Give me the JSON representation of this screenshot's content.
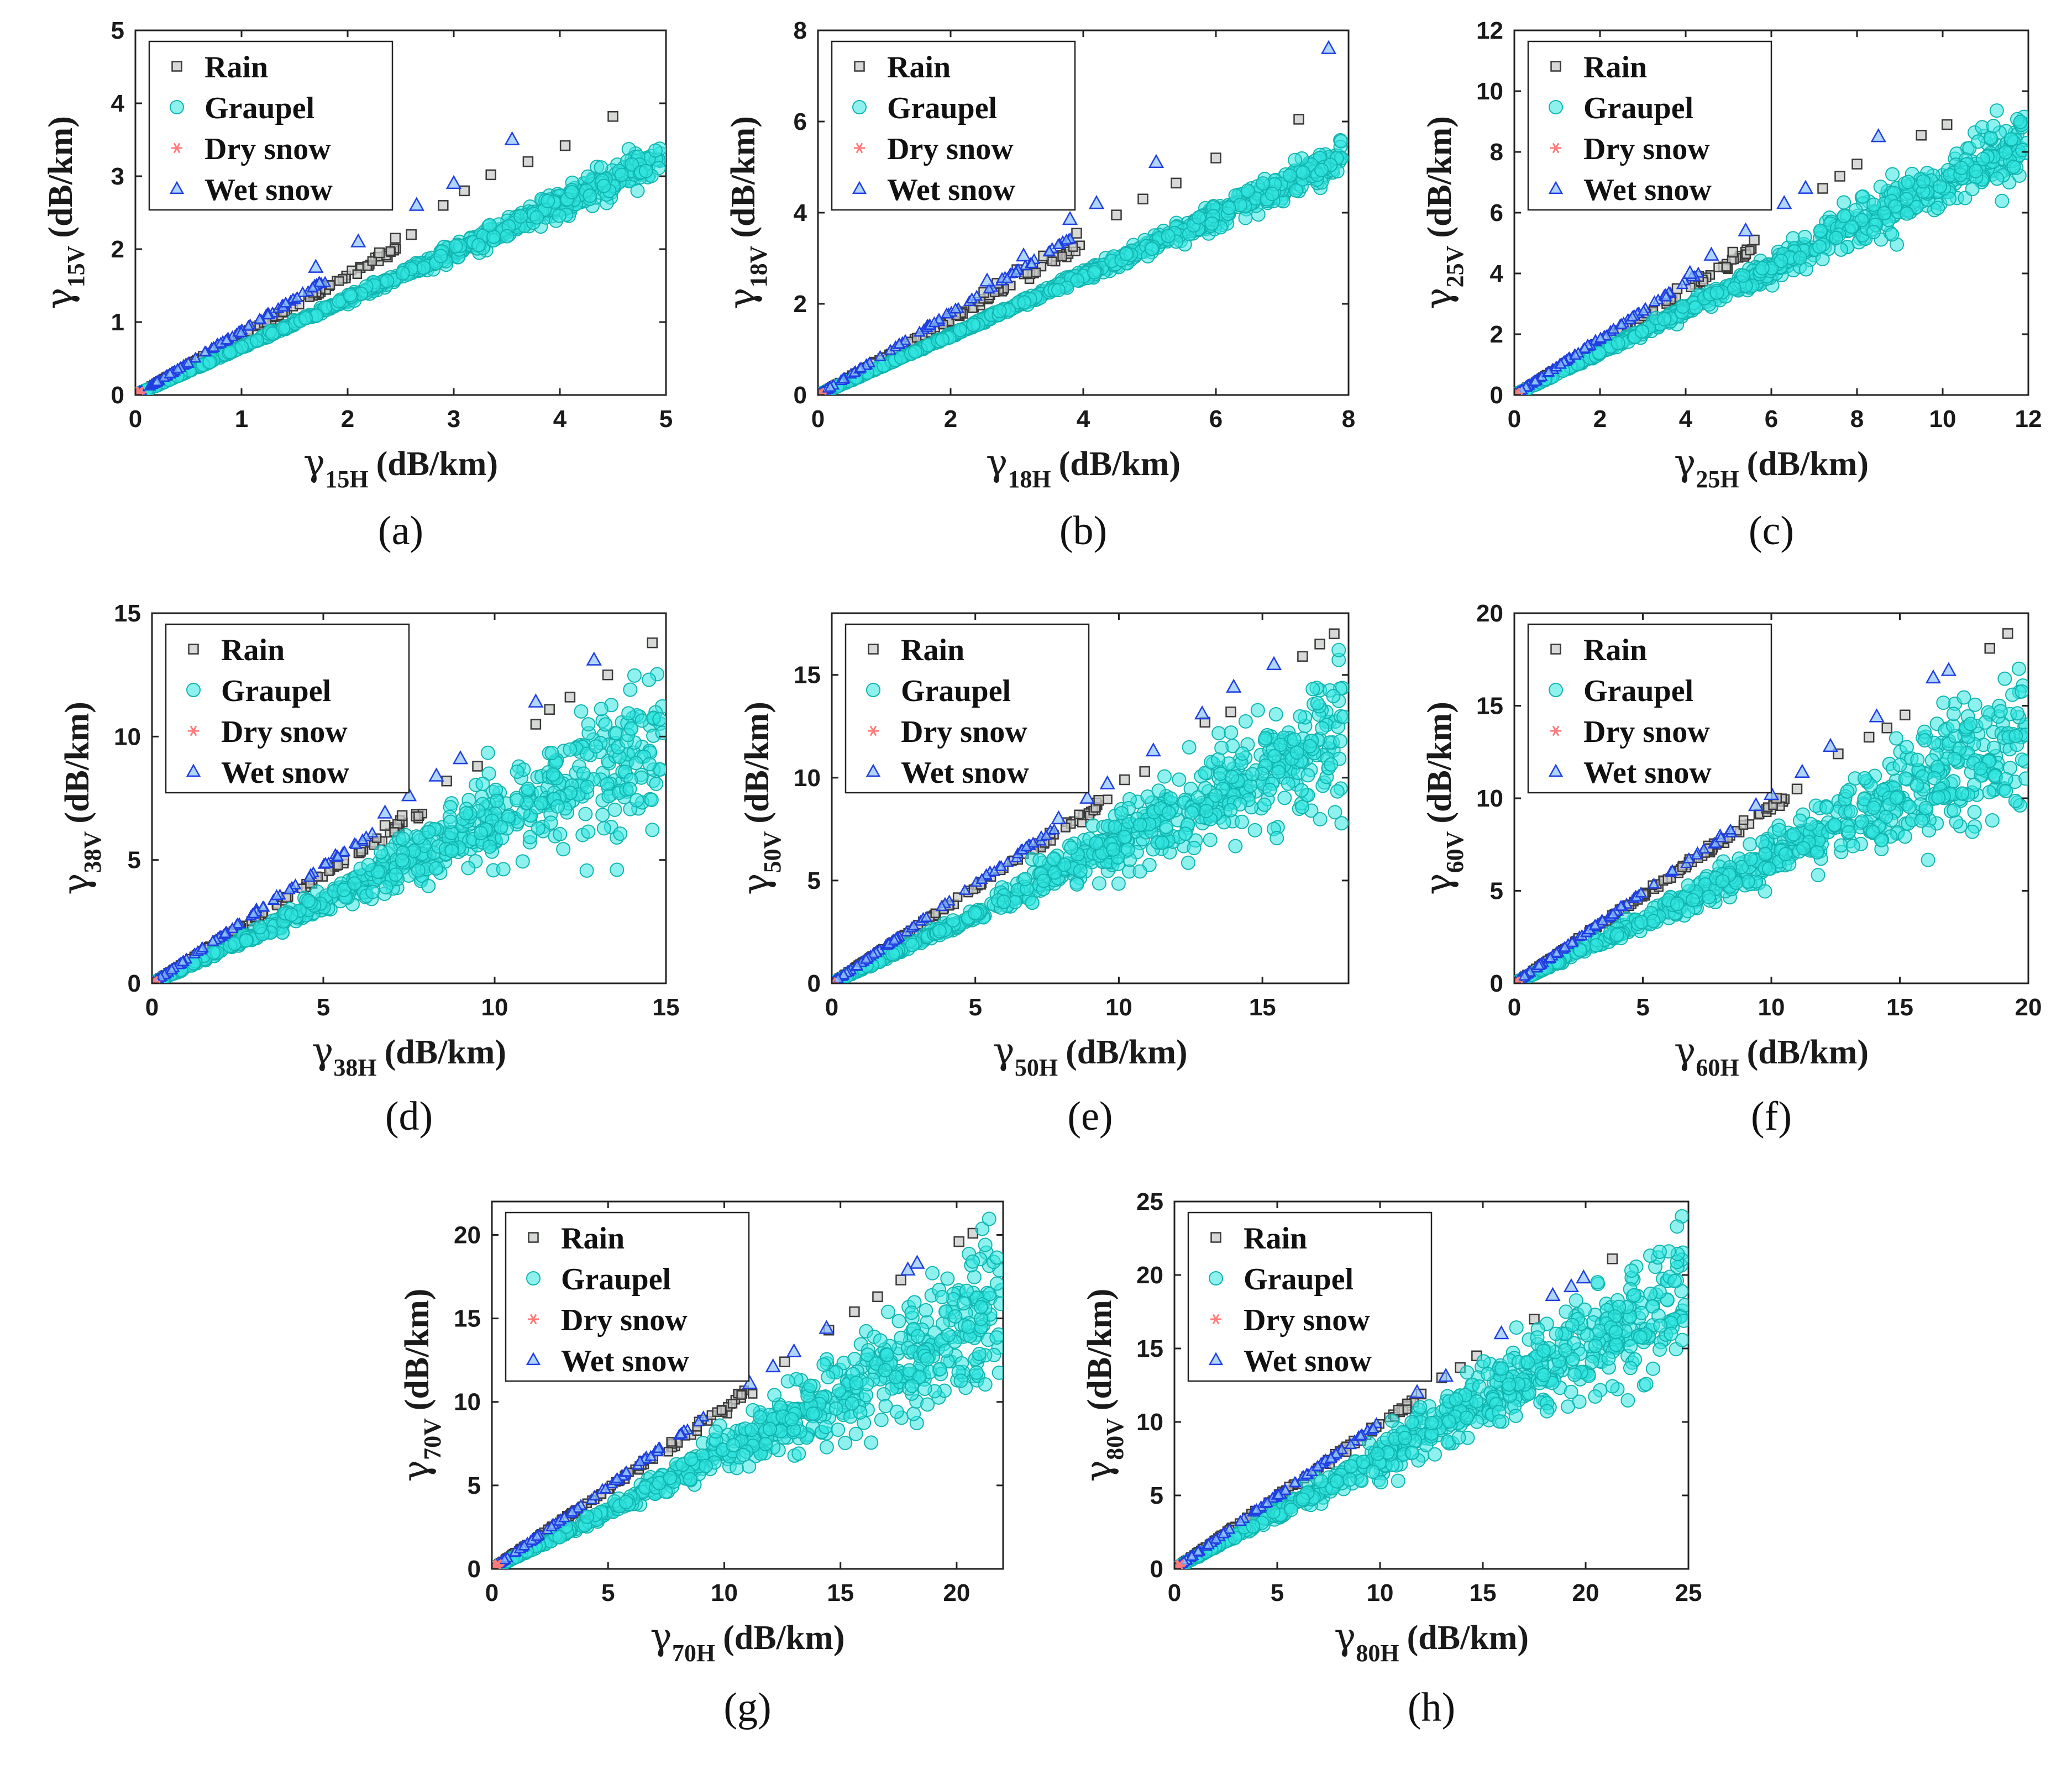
{
  "legend": {
    "rain": "Rain",
    "graupel": "Graupel",
    "dry_snow": "Dry snow",
    "wet_snow": "Wet snow"
  },
  "colors": {
    "rain_fill": "#c9ccc9",
    "rain_edge": "#3a3a3a",
    "graupel_fill": "#33e6e0",
    "graupel_edge": "#11b5b0",
    "dry_snow": "#ff7a7a",
    "wet_snow_fill": "#8fc3ff",
    "wet_snow_edge": "#1f3fe0"
  },
  "chart_data": [
    {
      "id": "a",
      "caption": "(a)",
      "type": "scatter",
      "xlabel": "γ15H (dB/km)",
      "ylabel": "γ15V (dB/km)",
      "x_symbol": "γ",
      "x_sub": "15H",
      "y_symbol": "γ",
      "y_sub": "15V",
      "unit": "(dB/km)",
      "xlim": [
        0,
        5
      ],
      "ylim": [
        0,
        5
      ],
      "xticks": [
        "0",
        "1",
        "2",
        "3",
        "4",
        "5"
      ],
      "yticks": [
        "0",
        "1",
        "2",
        "3",
        "4",
        "5"
      ],
      "series_trends": {
        "rain": {
          "slope": 0.82,
          "max_x": 4.5,
          "outliers": [
            [
              3.7,
              3.2
            ],
            [
              4.05,
              3.42
            ],
            [
              4.5,
              3.82
            ],
            [
              3.35,
              3.02
            ],
            [
              3.1,
              2.8
            ],
            [
              2.9,
              2.6
            ],
            [
              2.6,
              2.2
            ],
            [
              2.45,
              2.15
            ],
            [
              2.3,
              1.95
            ]
          ]
        },
        "graupel": {
          "slope": 0.655,
          "max_x": 4.95,
          "spread": 0.03
        },
        "wet_snow": {
          "slope": 0.88,
          "max_x": 3.6,
          "outliers": [
            [
              3.55,
              3.5
            ],
            [
              3.0,
              2.9
            ],
            [
              2.65,
              2.6
            ],
            [
              2.1,
              2.1
            ],
            [
              1.7,
              1.75
            ]
          ]
        },
        "dry_snow": {
          "max": 0.05
        }
      }
    },
    {
      "id": "b",
      "caption": "(b)",
      "type": "scatter",
      "xlabel": "γ18H (dB/km)",
      "ylabel": "γ18V (dB/km)",
      "x_symbol": "γ",
      "x_sub": "18H",
      "y_symbol": "γ",
      "y_sub": "18V",
      "unit": "(dB/km)",
      "xlim": [
        0,
        8
      ],
      "ylim": [
        0,
        8
      ],
      "xticks": [
        "0",
        "2",
        "4",
        "6",
        "8"
      ],
      "yticks": [
        "0",
        "2",
        "4",
        "6",
        "8"
      ],
      "series_trends": {
        "rain": {
          "slope": 0.83,
          "max_x": 7.3,
          "outliers": [
            [
              7.25,
              6.05
            ],
            [
              6.0,
              5.2
            ],
            [
              5.4,
              4.65
            ],
            [
              4.9,
              4.3
            ],
            [
              4.5,
              3.95
            ],
            [
              3.9,
              3.55
            ],
            [
              3.4,
              3.05
            ],
            [
              3.0,
              2.75
            ],
            [
              2.7,
              2.45
            ],
            [
              2.5,
              2.25
            ]
          ]
        },
        "graupel": {
          "slope": 0.655,
          "max_x": 7.9,
          "spread": 0.03
        },
        "wet_snow": {
          "slope": 0.9,
          "max_x": 7.75,
          "outliers": [
            [
              7.7,
              7.6
            ],
            [
              5.1,
              5.1
            ],
            [
              4.2,
              4.2
            ],
            [
              3.8,
              3.85
            ],
            [
              3.1,
              3.05
            ],
            [
              2.55,
              2.5
            ]
          ]
        },
        "dry_snow": {
          "max": 0.05
        }
      }
    },
    {
      "id": "c",
      "caption": "(c)",
      "type": "scatter",
      "xlabel": "γ25H (dB/km)",
      "ylabel": "γ25V (dB/km)",
      "x_symbol": "γ",
      "x_sub": "25H",
      "y_symbol": "γ",
      "y_sub": "25V",
      "unit": "(dB/km)",
      "xlim": [
        0,
        12
      ],
      "ylim": [
        0,
        12
      ],
      "xticks": [
        "0",
        "2",
        "4",
        "6",
        "8",
        "10",
        "12"
      ],
      "yticks": [
        "0",
        "2",
        "4",
        "6",
        "8",
        "10",
        "12"
      ],
      "series_trends": {
        "rain": {
          "slope": 0.86,
          "max_x": 10.1,
          "outliers": [
            [
              10.1,
              8.9
            ],
            [
              9.5,
              8.55
            ],
            [
              8.0,
              7.6
            ],
            [
              7.6,
              7.2
            ],
            [
              7.2,
              6.8
            ],
            [
              5.6,
              5.1
            ],
            [
              5.1,
              4.7
            ],
            [
              4.3,
              3.9
            ],
            [
              3.8,
              3.5
            ]
          ]
        },
        "graupel": {
          "slope": 0.7,
          "max_x": 12.0,
          "spread": 0.06
        },
        "wet_snow": {
          "slope": 0.93,
          "max_x": 8.6,
          "outliers": [
            [
              8.5,
              8.5
            ],
            [
              6.8,
              6.8
            ],
            [
              6.3,
              6.3
            ],
            [
              5.4,
              5.4
            ],
            [
              4.6,
              4.6
            ],
            [
              4.1,
              4.0
            ]
          ]
        },
        "dry_snow": {
          "max": 0.08
        }
      }
    },
    {
      "id": "d",
      "caption": "(d)",
      "type": "scatter",
      "xlabel": "γ38H (dB/km)",
      "ylabel": "γ38V (dB/km)",
      "x_symbol": "γ",
      "x_sub": "38H",
      "y_symbol": "γ",
      "y_sub": "38V",
      "unit": "(dB/km)",
      "xlim": [
        0,
        15
      ],
      "ylim": [
        0,
        15
      ],
      "xticks": [
        "0",
        "5",
        "10",
        "15"
      ],
      "yticks": [
        "0",
        "5",
        "10",
        "15"
      ],
      "series_trends": {
        "rain": {
          "slope": 0.88,
          "max_x": 14.6,
          "outliers": [
            [
              14.6,
              13.8
            ],
            [
              13.3,
              12.5
            ],
            [
              12.2,
              11.6
            ],
            [
              11.6,
              11.1
            ],
            [
              11.2,
              10.5
            ],
            [
              9.5,
              8.8
            ],
            [
              8.6,
              8.2
            ],
            [
              7.3,
              6.8
            ],
            [
              6.8,
              6.4
            ]
          ]
        },
        "graupel": {
          "slope": 0.66,
          "max_x": 14.9,
          "spread": 0.13
        },
        "wet_snow": {
          "slope": 0.95,
          "max_x": 13.0,
          "outliers": [
            [
              12.9,
              13.1
            ],
            [
              11.2,
              11.4
            ],
            [
              9.0,
              9.1
            ],
            [
              8.3,
              8.4
            ],
            [
              7.5,
              7.6
            ],
            [
              6.8,
              6.9
            ]
          ]
        },
        "dry_snow": {
          "max": 0.1
        }
      }
    },
    {
      "id": "e",
      "caption": "(e)",
      "type": "scatter",
      "xlabel": "γ50H (dB/km)",
      "ylabel": "γ50V (dB/km)",
      "x_symbol": "γ",
      "x_sub": "50H",
      "y_symbol": "γ",
      "y_sub": "50V",
      "unit": "(dB/km)",
      "xlim": [
        0,
        18
      ],
      "ylim": [
        0,
        18
      ],
      "xticks": [
        "0",
        "5",
        "10",
        "15"
      ],
      "yticks": [
        "0",
        "5",
        "10",
        "15"
      ],
      "series_trends": {
        "rain": {
          "slope": 0.93,
          "max_x": 17.5,
          "outliers": [
            [
              17.5,
              17.0
            ],
            [
              17.0,
              16.5
            ],
            [
              16.4,
              15.9
            ],
            [
              13.9,
              13.2
            ],
            [
              13.0,
              12.7
            ],
            [
              10.9,
              10.3
            ],
            [
              10.2,
              9.9
            ],
            [
              9.3,
              8.9
            ],
            [
              7.6,
              7.3
            ]
          ]
        },
        "graupel": {
          "slope": 0.68,
          "max_x": 17.9,
          "spread": 0.12
        },
        "wet_snow": {
          "slope": 0.97,
          "max_x": 15.5,
          "outliers": [
            [
              15.4,
              15.5
            ],
            [
              14.0,
              14.4
            ],
            [
              12.9,
              13.1
            ],
            [
              11.2,
              11.3
            ],
            [
              9.6,
              9.7
            ],
            [
              8.9,
              9.0
            ],
            [
              7.9,
              8.0
            ]
          ]
        },
        "dry_snow": {
          "max": 0.1
        }
      }
    },
    {
      "id": "f",
      "caption": "(f)",
      "type": "scatter",
      "xlabel": "γ60H (dB/km)",
      "ylabel": "γ60V (dB/km)",
      "x_symbol": "γ",
      "x_sub": "60H",
      "y_symbol": "γ",
      "y_sub": "60V",
      "unit": "(dB/km)",
      "xlim": [
        0,
        20
      ],
      "ylim": [
        0,
        20
      ],
      "xticks": [
        "0",
        "5",
        "10",
        "15",
        "20"
      ],
      "yticks": [
        "0",
        "5",
        "10",
        "15",
        "20"
      ],
      "series_trends": {
        "rain": {
          "slope": 0.95,
          "max_x": 19.2,
          "outliers": [
            [
              19.2,
              18.9
            ],
            [
              18.5,
              18.1
            ],
            [
              15.2,
              14.5
            ],
            [
              14.5,
              13.8
            ],
            [
              13.8,
              13.3
            ],
            [
              12.6,
              12.4
            ],
            [
              11.0,
              10.5
            ],
            [
              10.2,
              10.0
            ]
          ]
        },
        "graupel": {
          "slope": 0.68,
          "max_x": 19.9,
          "spread": 0.12
        },
        "wet_snow": {
          "slope": 0.98,
          "max_x": 17.0,
          "outliers": [
            [
              16.9,
              16.9
            ],
            [
              16.3,
              16.5
            ],
            [
              14.1,
              14.4
            ],
            [
              12.3,
              12.8
            ],
            [
              11.2,
              11.4
            ],
            [
              10.0,
              10.2
            ],
            [
              9.4,
              9.6
            ]
          ]
        },
        "dry_snow": {
          "max": 0.1
        }
      }
    },
    {
      "id": "g",
      "caption": "(g)",
      "type": "scatter",
      "xlabel": "γ70H (dB/km)",
      "ylabel": "γ70V (dB/km)",
      "x_symbol": "γ",
      "x_sub": "70H",
      "y_symbol": "γ",
      "y_sub": "70V",
      "unit": "(dB/km)",
      "xlim": [
        0,
        22
      ],
      "ylim": [
        0,
        22
      ],
      "xticks": [
        "0",
        "5",
        "10",
        "15",
        "20"
      ],
      "yticks": [
        "0",
        "5",
        "10",
        "15",
        "20"
      ],
      "series_trends": {
        "rain": {
          "slope": 0.96,
          "max_x": 20.7,
          "outliers": [
            [
              20.7,
              20.1
            ],
            [
              20.1,
              19.6
            ],
            [
              17.6,
              17.3
            ],
            [
              16.6,
              16.3
            ],
            [
              15.6,
              15.4
            ],
            [
              14.5,
              14.3
            ],
            [
              12.6,
              12.4
            ]
          ]
        },
        "graupel": {
          "slope": 0.7,
          "max_x": 22.0,
          "spread": 0.12
        },
        "wet_snow": {
          "slope": 0.99,
          "max_x": 18.3,
          "outliers": [
            [
              18.3,
              18.3
            ],
            [
              17.9,
              17.9
            ],
            [
              14.4,
              14.4
            ],
            [
              13.0,
              13.0
            ],
            [
              12.1,
              12.1
            ],
            [
              11.1,
              11.1
            ]
          ]
        },
        "dry_snow": {
          "max": 0.3
        }
      }
    },
    {
      "id": "h",
      "caption": "(h)",
      "type": "scatter",
      "xlabel": "γ80H (dB/km)",
      "ylabel": "γ80V (dB/km)",
      "x_symbol": "γ",
      "x_sub": "80H",
      "y_symbol": "γ",
      "y_sub": "80V",
      "unit": "(dB/km)",
      "xlim": [
        0,
        25
      ],
      "ylim": [
        0,
        25
      ],
      "xticks": [
        "0",
        "5",
        "10",
        "15",
        "20",
        "25"
      ],
      "yticks": [
        "0",
        "5",
        "10",
        "15",
        "20",
        "25"
      ],
      "series_trends": {
        "rain": {
          "slope": 0.98,
          "max_x": 21.3,
          "outliers": [
            [
              21.3,
              21.1
            ],
            [
              17.5,
              17.0
            ],
            [
              14.7,
              14.5
            ],
            [
              13.9,
              13.7
            ],
            [
              13.0,
              13.0
            ],
            [
              12.0,
              11.9
            ],
            [
              10.9,
              10.8
            ]
          ]
        },
        "graupel": {
          "slope": 0.76,
          "max_x": 24.9,
          "spread": 0.11
        },
        "wet_snow": {
          "slope": 1.0,
          "max_x": 20.0,
          "outliers": [
            [
              19.9,
              19.8
            ],
            [
              19.3,
              19.2
            ],
            [
              18.4,
              18.6
            ],
            [
              15.9,
              16.0
            ],
            [
              13.2,
              13.1
            ],
            [
              11.8,
              12.0
            ]
          ]
        },
        "dry_snow": {
          "max": 0.3
        }
      }
    }
  ]
}
